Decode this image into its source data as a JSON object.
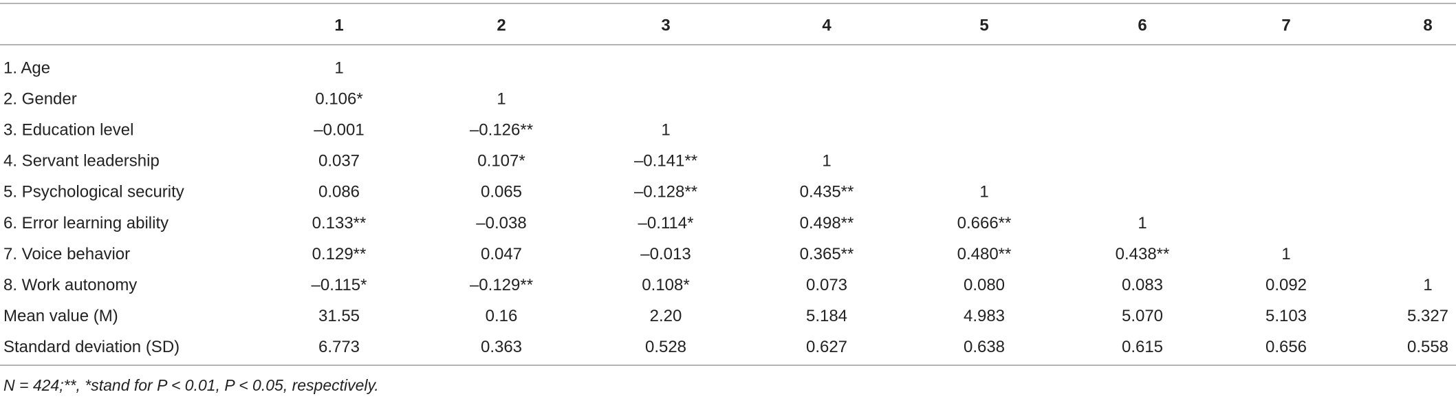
{
  "table": {
    "header": [
      "1",
      "2",
      "3",
      "4",
      "5",
      "6",
      "7",
      "8"
    ],
    "rows": [
      [
        "1. Age",
        "1"
      ],
      [
        "2. Gender",
        "0.106*",
        "1"
      ],
      [
        "3. Education level",
        "–0.001",
        "–0.126**",
        "1"
      ],
      [
        "4. Servant leadership",
        "0.037",
        "0.107*",
        "–0.141**",
        "1"
      ],
      [
        "5. Psychological security",
        "0.086",
        "0.065",
        "–0.128**",
        "0.435**",
        "1"
      ],
      [
        "6. Error learning ability",
        "0.133**",
        "–0.038",
        "–0.114*",
        "0.498**",
        "0.666**",
        "1"
      ],
      [
        "7. Voice behavior",
        "0.129**",
        "0.047",
        "–0.013",
        "0.365**",
        "0.480**",
        "0.438**",
        "1"
      ],
      [
        "8. Work autonomy",
        "–0.115*",
        "–0.129**",
        "0.108*",
        "0.073",
        "0.080",
        "0.083",
        "0.092",
        "1"
      ],
      [
        "Mean value (M)",
        "31.55",
        "0.16",
        "2.20",
        "5.184",
        "4.983",
        "5.070",
        "5.103",
        "5.327"
      ],
      [
        "Standard deviation (SD)",
        "6.773",
        "0.363",
        "0.528",
        "0.627",
        "0.638",
        "0.615",
        "0.656",
        "0.558"
      ]
    ],
    "footnote": "N = 424;**, *stand for P < 0.01, P < 0.05, respectively."
  }
}
